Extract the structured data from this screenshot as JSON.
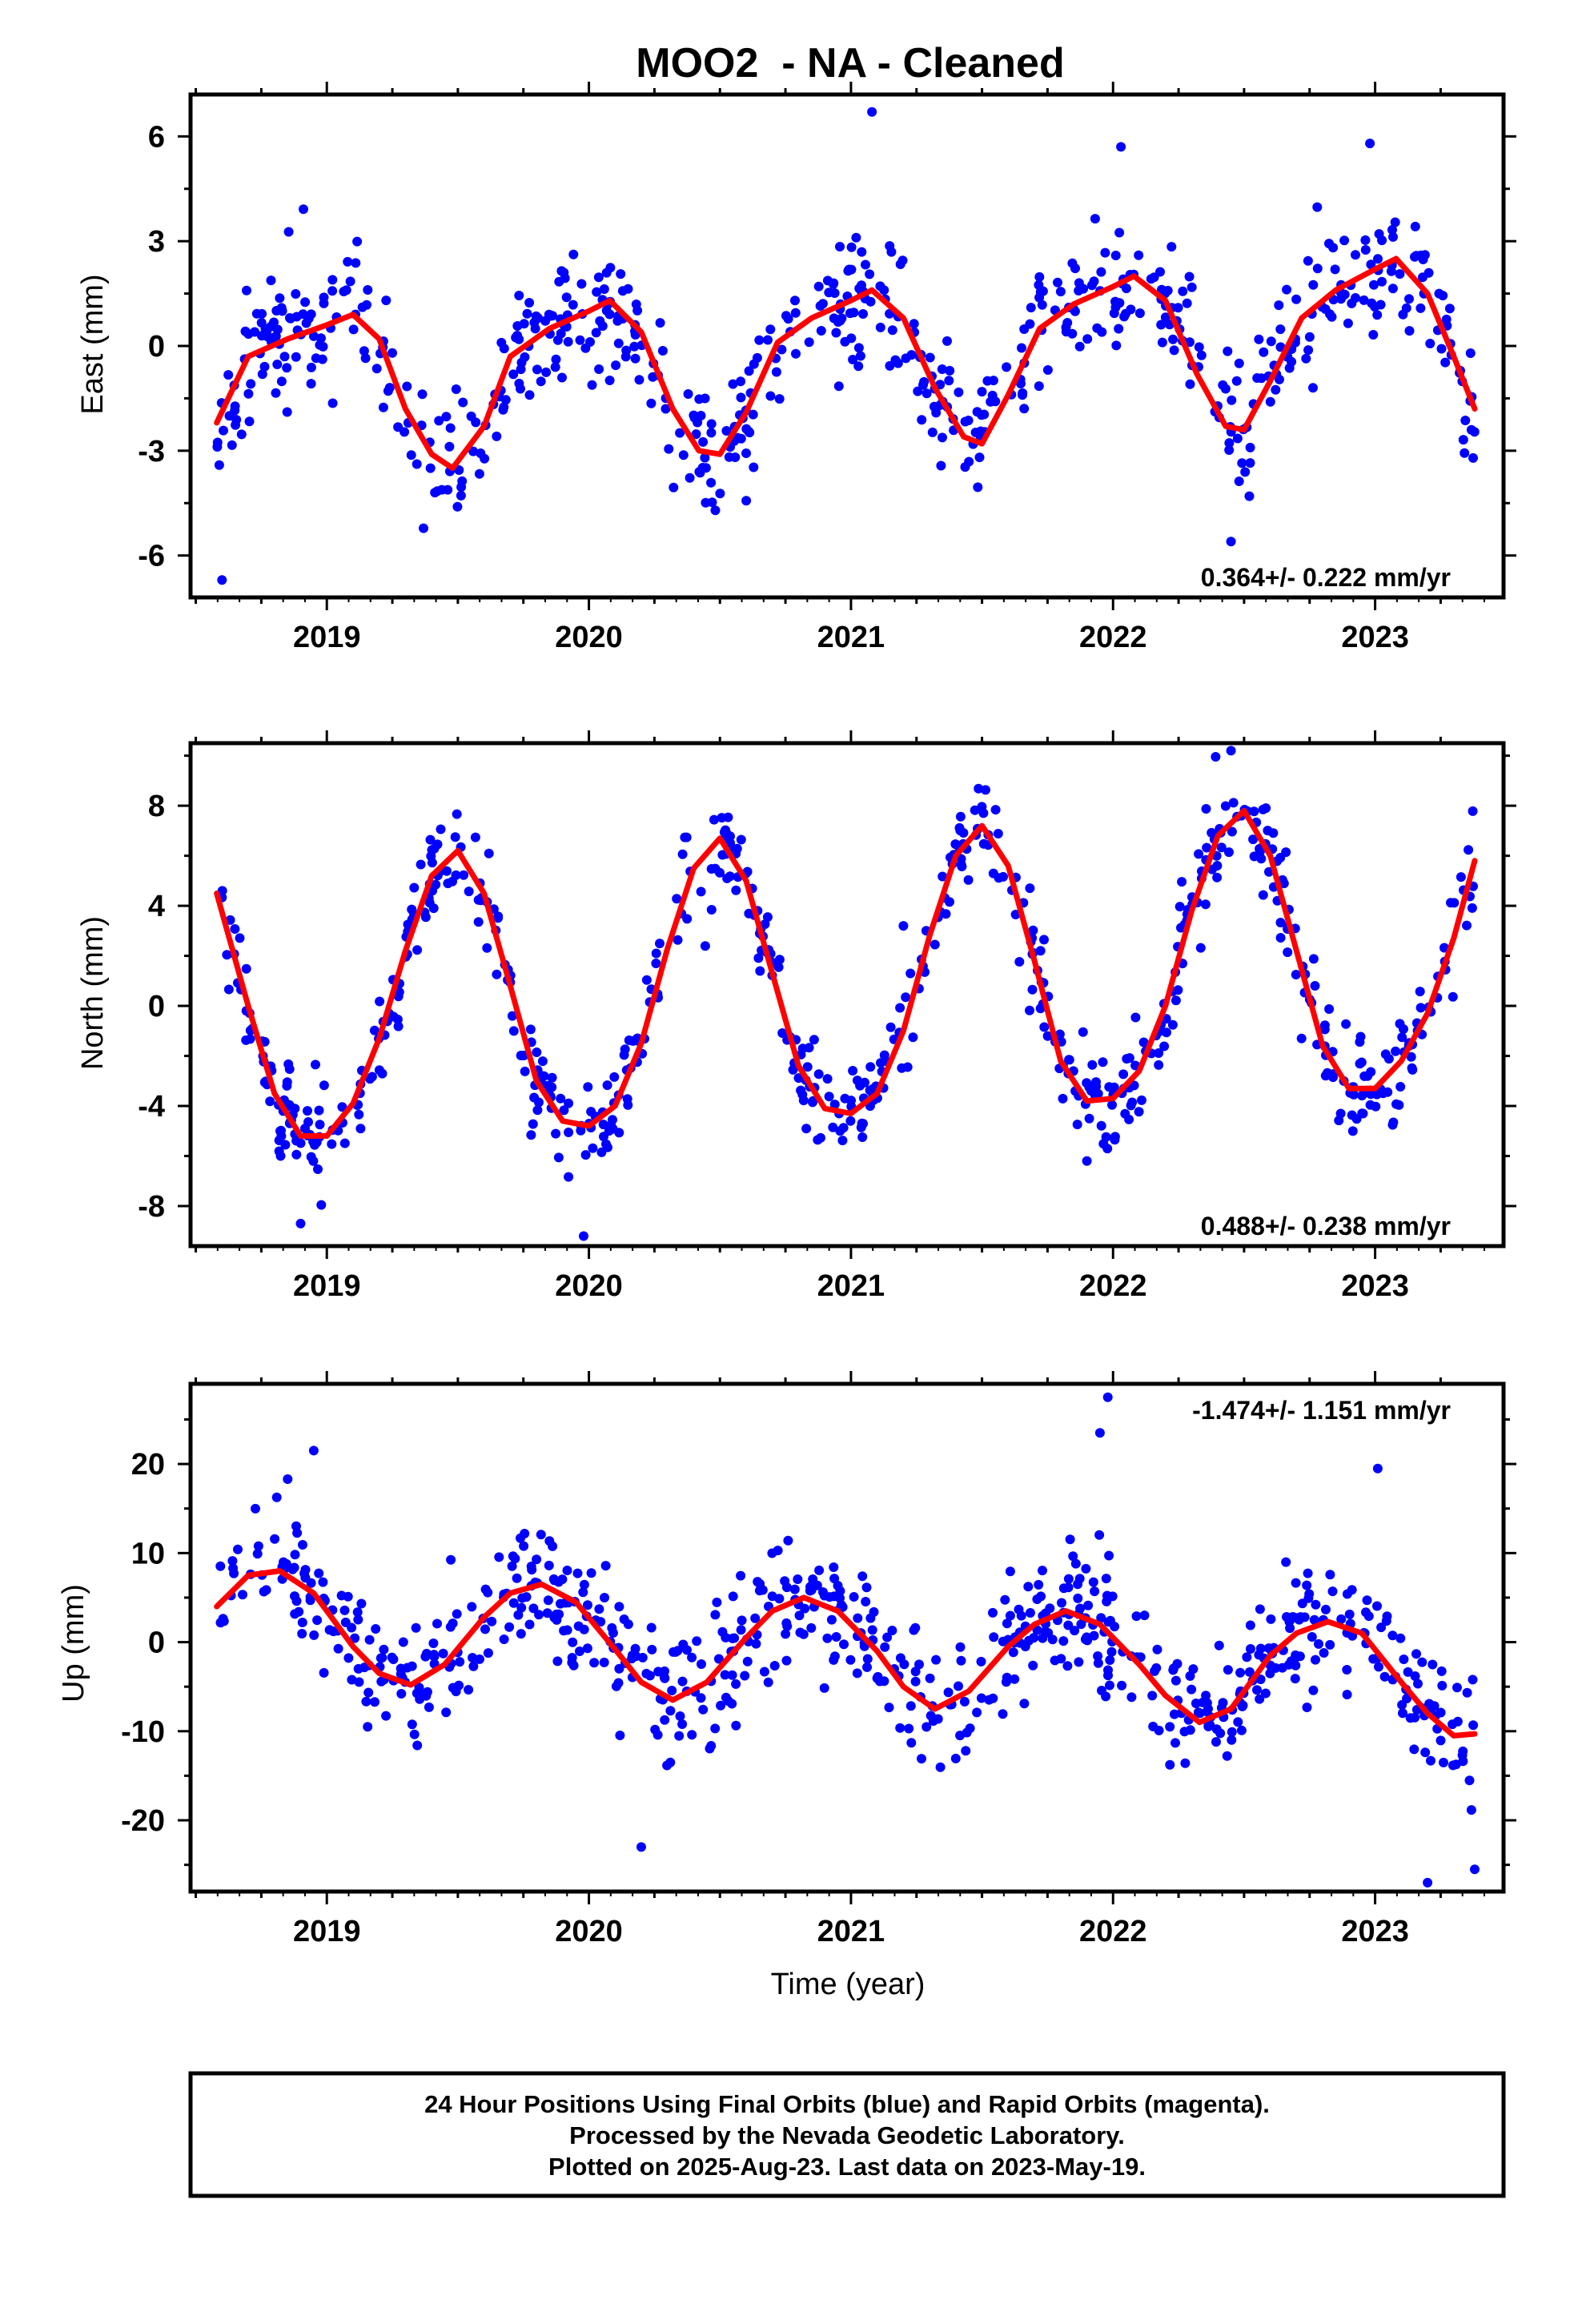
{
  "figure_title": "MOO2  - NA - Cleaned",
  "chart_data": [
    {
      "type": "scatter",
      "component": "east",
      "ylabel": "East (mm)",
      "xlabel": "",
      "ylim": [
        -7.2,
        7.2
      ],
      "yticks": [
        -6,
        -3,
        0,
        3,
        6
      ],
      "xlim": [
        2018.48,
        2023.49
      ],
      "xticks": [
        2019,
        2020,
        2021,
        2022,
        2023
      ],
      "rate_label": "0.364+/- 0.222 mm/yr",
      "rate_position": "bottom-right",
      "points_color": "#0000ff",
      "fit_color": "#ff0000",
      "fit_curve": {
        "x": [
          2018.58,
          2018.7,
          2018.85,
          2019.0,
          2019.1,
          2019.2,
          2019.3,
          2019.4,
          2019.48,
          2019.6,
          2019.7,
          2019.85,
          2020.0,
          2020.08,
          2020.2,
          2020.32,
          2020.42,
          2020.5,
          2020.6,
          2020.72,
          2020.85,
          2021.0,
          2021.08,
          2021.2,
          2021.32,
          2021.43,
          2021.5,
          2021.6,
          2021.72,
          2021.85,
          2022.0,
          2022.08,
          2022.2,
          2022.32,
          2022.43,
          2022.5,
          2022.6,
          2022.72,
          2022.85,
          2023.0,
          2023.08,
          2023.2,
          2023.3,
          2023.38
        ],
        "y": [
          -2.2,
          -0.3,
          0.2,
          0.6,
          0.9,
          0.2,
          -1.8,
          -3.1,
          -3.5,
          -2.3,
          -0.3,
          0.5,
          1.0,
          1.3,
          0.4,
          -1.8,
          -3.0,
          -3.1,
          -1.9,
          0.1,
          0.8,
          1.3,
          1.6,
          0.8,
          -1.2,
          -2.6,
          -2.8,
          -1.4,
          0.5,
          1.2,
          1.7,
          2.0,
          1.3,
          -0.8,
          -2.3,
          -2.4,
          -1.0,
          0.8,
          1.6,
          2.2,
          2.5,
          1.5,
          -0.3,
          -1.8
        ]
      },
      "scatter_spec": {
        "n": 640,
        "seed": 11,
        "noise": 1.0,
        "outliers": [
          [
            2021.08,
            6.7
          ],
          [
            2018.6,
            -6.7
          ],
          [
            2022.45,
            -5.6
          ],
          [
            2022.03,
            5.7
          ],
          [
            2022.98,
            5.8
          ]
        ]
      }
    },
    {
      "type": "scatter",
      "component": "north",
      "ylabel": "North (mm)",
      "xlabel": "",
      "ylim": [
        -9.6,
        10.5
      ],
      "yticks": [
        -8,
        -4,
        0,
        4,
        8
      ],
      "xlim": [
        2018.48,
        2023.49
      ],
      "xticks": [
        2019,
        2020,
        2021,
        2022,
        2023
      ],
      "rate_label": "0.488+/- 0.238 mm/yr",
      "rate_position": "bottom-right",
      "points_color": "#0000ff",
      "fit_color": "#ff0000",
      "fit_curve": {
        "x": [
          2018.58,
          2018.7,
          2018.8,
          2018.9,
          2019.0,
          2019.1,
          2019.2,
          2019.3,
          2019.4,
          2019.5,
          2019.6,
          2019.7,
          2019.8,
          2019.9,
          2020.0,
          2020.1,
          2020.2,
          2020.3,
          2020.4,
          2020.5,
          2020.6,
          2020.7,
          2020.8,
          2020.9,
          2021.0,
          2021.1,
          2021.2,
          2021.3,
          2021.4,
          2021.5,
          2021.6,
          2021.7,
          2021.8,
          2021.9,
          2022.0,
          2022.1,
          2022.2,
          2022.3,
          2022.4,
          2022.5,
          2022.6,
          2022.7,
          2022.8,
          2022.9,
          2023.0,
          2023.1,
          2023.2,
          2023.3,
          2023.38
        ],
        "y": [
          4.5,
          0.0,
          -3.5,
          -5.2,
          -5.2,
          -3.9,
          -1.3,
          2.2,
          5.2,
          6.2,
          4.5,
          0.8,
          -3.0,
          -4.6,
          -4.8,
          -4.0,
          -1.5,
          2.3,
          5.5,
          6.7,
          5.0,
          1.3,
          -2.4,
          -4.1,
          -4.3,
          -3.5,
          -1.0,
          2.8,
          6.0,
          7.2,
          5.6,
          1.8,
          -2.2,
          -3.8,
          -3.7,
          -2.6,
          0.0,
          3.8,
          6.8,
          7.8,
          6.0,
          2.2,
          -1.6,
          -3.3,
          -3.3,
          -2.2,
          -0.3,
          2.7,
          5.8
        ]
      },
      "scatter_spec": {
        "n": 660,
        "seed": 23,
        "noise": 1.0,
        "outliers": [
          [
            2022.45,
            10.2
          ],
          [
            2019.98,
            -9.2
          ],
          [
            2018.9,
            -8.7
          ],
          [
            2021.2,
            3.2
          ]
        ]
      }
    },
    {
      "type": "scatter",
      "component": "up",
      "ylabel": "Up (mm)",
      "xlabel": "Time (year)",
      "ylim": [
        -28,
        29
      ],
      "yticks": [
        -20,
        -10,
        0,
        10,
        20
      ],
      "xlim": [
        2018.48,
        2023.49
      ],
      "xticks": [
        2019,
        2020,
        2021,
        2022,
        2023
      ],
      "rate_label": "-1.474+/- 1.151 mm/yr",
      "rate_position": "top-right",
      "points_color": "#0000ff",
      "fit_color": "#ff0000",
      "fit_curve": {
        "x": [
          2018.58,
          2018.7,
          2018.82,
          2018.95,
          2019.1,
          2019.2,
          2019.32,
          2019.45,
          2019.6,
          2019.7,
          2019.82,
          2019.95,
          2020.1,
          2020.2,
          2020.32,
          2020.45,
          2020.6,
          2020.7,
          2020.82,
          2020.95,
          2021.1,
          2021.2,
          2021.32,
          2021.45,
          2021.6,
          2021.7,
          2021.82,
          2021.95,
          2022.1,
          2022.2,
          2022.33,
          2022.45,
          2022.6,
          2022.7,
          2022.82,
          2022.95,
          2023.1,
          2023.2,
          2023.3,
          2023.38
        ],
        "y": [
          4.0,
          7.5,
          8.0,
          5.5,
          -0.5,
          -3.5,
          -4.8,
          -2.5,
          2.8,
          5.5,
          6.5,
          4.5,
          -0.8,
          -4.5,
          -6.5,
          -4.5,
          0.5,
          3.5,
          5.0,
          3.5,
          -1.0,
          -5.0,
          -7.5,
          -5.5,
          -0.5,
          2.0,
          3.5,
          2.0,
          -2.5,
          -6.0,
          -9.0,
          -7.5,
          -1.5,
          1.0,
          2.3,
          1.0,
          -4.5,
          -8.0,
          -10.5,
          -10.3
        ]
      },
      "scatter_spec": {
        "n": 700,
        "seed": 37,
        "noise": 3.6,
        "outliers": [
          [
            2021.98,
            27.5
          ],
          [
            2021.95,
            23.5
          ],
          [
            2018.95,
            21.5
          ],
          [
            2023.01,
            19.5
          ],
          [
            2023.2,
            -27.0
          ],
          [
            2023.38,
            -25.5
          ],
          [
            2020.2,
            -23.0
          ]
        ]
      }
    }
  ],
  "footer": {
    "line1": "24 Hour Positions Using Final Orbits (blue) and Rapid Orbits (magenta).",
    "line2": "Processed by the Nevada Geodetic Laboratory.",
    "line3": "Plotted on 2025-Aug-23. Last data on 2023-May-19."
  }
}
